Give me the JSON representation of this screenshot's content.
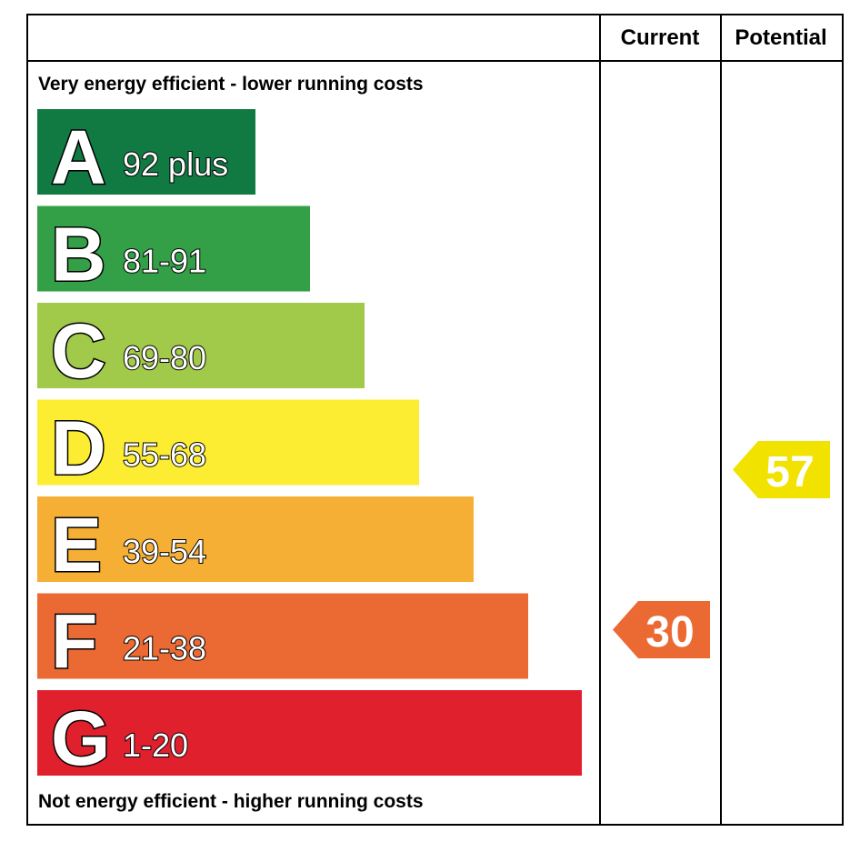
{
  "chart_data": {
    "type": "bar",
    "header": {
      "current": "Current",
      "potential": "Potential"
    },
    "top_note": "Very energy efficient - lower running costs",
    "bottom_note": "Not energy efficient - higher running costs",
    "bands": [
      {
        "letter": "A",
        "range": "92 plus",
        "color": "#117a43"
      },
      {
        "letter": "B",
        "range": "81-91",
        "color": "#33a047"
      },
      {
        "letter": "C",
        "range": "69-80",
        "color": "#a1c94a"
      },
      {
        "letter": "D",
        "range": "55-68",
        "color": "#fded32"
      },
      {
        "letter": "E",
        "range": "39-54",
        "color": "#f6af35"
      },
      {
        "letter": "F",
        "range": "21-38",
        "color": "#eb6a33"
      },
      {
        "letter": "G",
        "range": "1-20",
        "color": "#e1202d"
      }
    ],
    "current": {
      "value": 30,
      "band": "F",
      "color": "#eb6a33"
    },
    "potential": {
      "value": 57,
      "band": "D",
      "color": "#f2e200"
    }
  }
}
